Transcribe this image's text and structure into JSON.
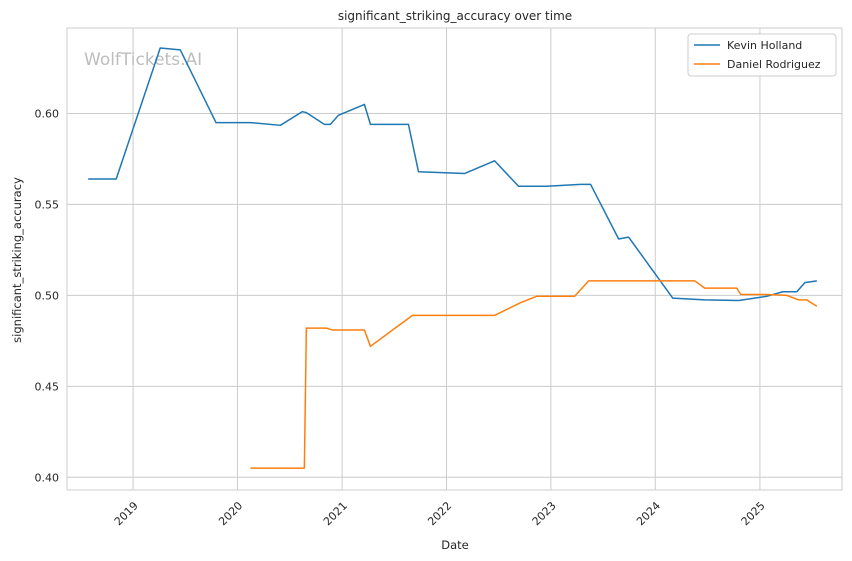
{
  "chart_data": {
    "type": "line",
    "title": "significant_striking_accuracy over time",
    "xlabel": "Date",
    "ylabel": "significant_striking_accuracy",
    "watermark": "WolfTickets.AI",
    "xlim": [
      "2018-05-15",
      "2025-10-15"
    ],
    "ylim": [
      0.393,
      0.647
    ],
    "x_ticks": [
      "2019",
      "2020",
      "2021",
      "2022",
      "2023",
      "2024",
      "2025"
    ],
    "y_ticks": [
      0.4,
      0.45,
      0.5,
      0.55,
      0.6
    ],
    "y_tick_labels": [
      "0.40",
      "0.45",
      "0.50",
      "0.55",
      "0.60"
    ],
    "grid": true,
    "legend_position": "top-right",
    "series": [
      {
        "name": "Kevin Holland",
        "color": "#1f77b4",
        "points": [
          [
            "2018-07-28",
            0.564
          ],
          [
            "2018-11-03",
            0.564
          ],
          [
            "2019-04-06",
            0.636
          ],
          [
            "2019-06-15",
            0.635
          ],
          [
            "2019-10-18",
            0.595
          ],
          [
            "2020-02-15",
            0.595
          ],
          [
            "2020-05-30",
            0.5935
          ],
          [
            "2020-08-15",
            0.601
          ],
          [
            "2020-08-29",
            0.6005
          ],
          [
            "2020-10-31",
            0.594
          ],
          [
            "2020-11-21",
            0.594
          ],
          [
            "2020-12-19",
            0.599
          ],
          [
            "2021-03-20",
            0.605
          ],
          [
            "2021-04-10",
            0.594
          ],
          [
            "2021-08-21",
            0.594
          ],
          [
            "2021-09-25",
            0.568
          ],
          [
            "2022-03-05",
            0.567
          ],
          [
            "2022-06-18",
            0.574
          ],
          [
            "2022-09-10",
            0.56
          ],
          [
            "2022-12-17",
            0.56
          ],
          [
            "2023-04-15",
            0.561
          ],
          [
            "2023-05-20",
            0.561
          ],
          [
            "2023-08-26",
            0.531
          ],
          [
            "2023-09-30",
            0.532
          ],
          [
            "2024-03-02",
            0.4985
          ],
          [
            "2024-06-22",
            0.4975
          ],
          [
            "2024-10-19",
            0.4972
          ],
          [
            "2025-01-25",
            0.4995
          ],
          [
            "2025-03-22",
            0.502
          ],
          [
            "2025-05-10",
            0.502
          ],
          [
            "2025-06-07",
            0.507
          ],
          [
            "2025-07-19",
            0.508
          ]
        ]
      },
      {
        "name": "Daniel Rodriguez",
        "color": "#ff7f0e",
        "points": [
          [
            "2020-02-15",
            0.405
          ],
          [
            "2020-08-22",
            0.405
          ],
          [
            "2020-08-29",
            0.482
          ],
          [
            "2020-11-07",
            0.482
          ],
          [
            "2020-11-28",
            0.481
          ],
          [
            "2021-03-20",
            0.481
          ],
          [
            "2021-04-10",
            0.472
          ],
          [
            "2021-09-04",
            0.489
          ],
          [
            "2022-06-18",
            0.489
          ],
          [
            "2022-09-17",
            0.496
          ],
          [
            "2022-11-12",
            0.4995
          ],
          [
            "2023-03-25",
            0.4995
          ],
          [
            "2023-05-13",
            0.508
          ],
          [
            "2024-05-18",
            0.508
          ],
          [
            "2024-06-22",
            0.504
          ],
          [
            "2024-10-12",
            0.504
          ],
          [
            "2024-10-26",
            0.5005
          ],
          [
            "2025-01-25",
            0.5005
          ],
          [
            "2025-04-05",
            0.5
          ],
          [
            "2025-05-17",
            0.4975
          ],
          [
            "2025-06-14",
            0.4975
          ],
          [
            "2025-07-19",
            0.494
          ]
        ]
      }
    ]
  }
}
